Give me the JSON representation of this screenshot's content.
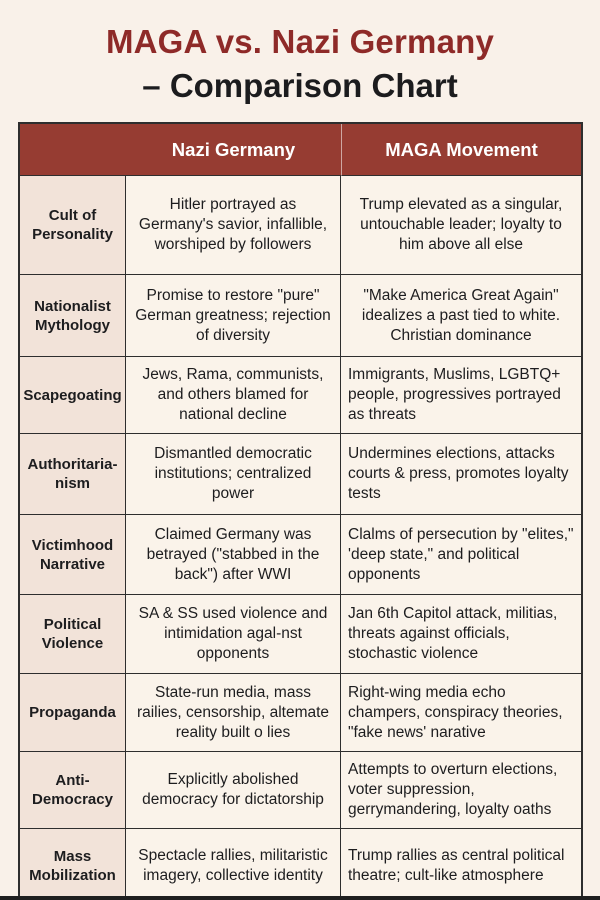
{
  "title": {
    "line1": "MAGA vs. Nazi Germany",
    "line2": "– Comparison Chart"
  },
  "colors": {
    "title_accent": "#8e2a28",
    "header_background": "#963c32",
    "header_text": "#ffffff",
    "category_cell_background": "#f2e3d9",
    "cell_background": "#faf3ea",
    "page_background": "#f9f1e9",
    "border": "#2e2e2e"
  },
  "table": {
    "headers": {
      "category": "",
      "nazi": "Nazi Germany",
      "maga": "MAGA Movement"
    },
    "rows": [
      {
        "category": "Cult of Personality",
        "nazi": "Hitler portrayed as Germany's savior, infallible, worshiped by followers",
        "maga": "Trump elevated as a singular, untouchable leader; loyalty to him above all else"
      },
      {
        "category": "Nationalist Mythology",
        "nazi": "Promise to restore \"pure\" German greatness; rejection of diversity",
        "maga": "\"Make America Great Again\" idealizes a past tied to white. Christian dominance"
      },
      {
        "category": "Scapegoating",
        "nazi": "Jews, Rama, communists, and others blamed for national decline",
        "maga": "Immigrants, Muslims, LGBTQ+ people, progressives portrayed as threats"
      },
      {
        "category": "Authoritaria-nism",
        "nazi": "Dismantled democratic institutions; centralized power",
        "maga": "Undermines elections, attacks courts & press, promotes loyalty tests"
      },
      {
        "category": "Victimhood Narrative",
        "nazi": "Claimed Germany was betrayed (\"stabbed in the back\") after WWI",
        "maga": "Clalms of persecution by \"elites,\" 'deep state,\" and political opponents"
      },
      {
        "category": "Political Violence",
        "nazi": "SA & SS used violence and intimidation agal-nst opponents",
        "maga": "Jan 6th Capitol attack, militias, threats against officials, stochastic violence"
      },
      {
        "category": "Propaganda",
        "nazi": "State-run media, mass railies, censorship, altemate reality built o lies",
        "maga": "Right-wing media echo champers, conspiracy theories, \"fake news' narative"
      },
      {
        "category": "Anti-Democracy",
        "nazi": "Explicitly abolished democracy for dictatorship",
        "maga": "Attempts to overturn elections, voter suppression, gerrymandering, loyalty oaths"
      },
      {
        "category": "Mass Mobilization",
        "nazi": "Spectacle rallies, militaristic imagery, collective identity",
        "maga": "Trump rallies as central political theatre; cult-like atmosphere"
      }
    ]
  }
}
